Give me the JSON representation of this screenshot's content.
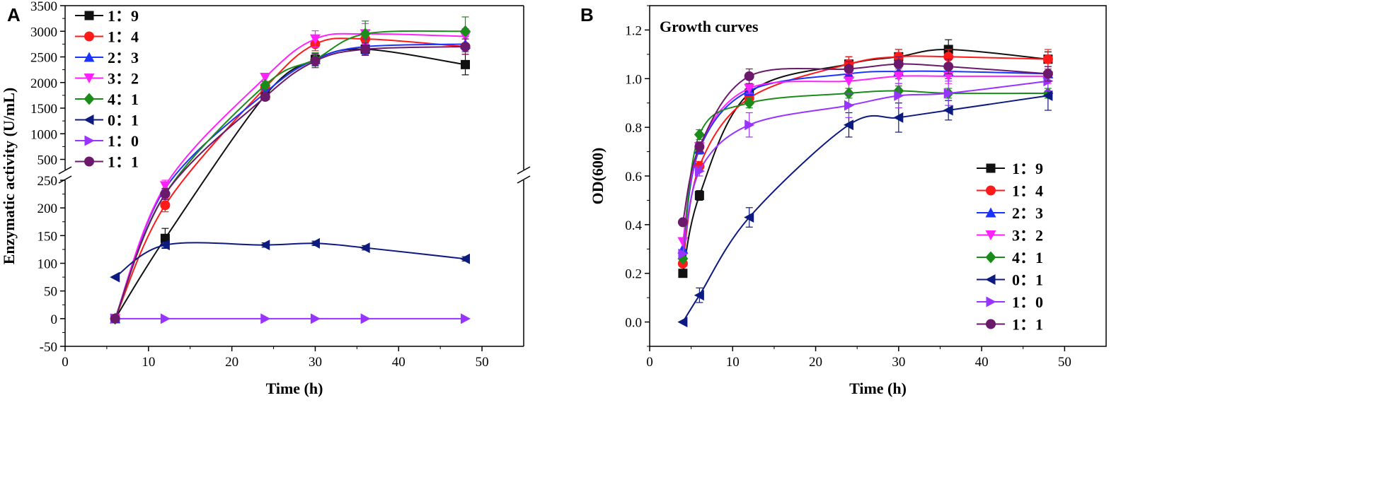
{
  "chart_data": [
    {
      "panel": "A",
      "type": "line",
      "title": "",
      "xlabel": "Time (h)",
      "ylabel": "Enzymatic activity (U/mL)",
      "xlim": [
        0,
        55
      ],
      "x_ticks": [
        "0",
        "10",
        "20",
        "30",
        "40",
        "50"
      ],
      "broken_y_axis": true,
      "ylim_lower": [
        -50,
        250
      ],
      "ylim_upper": [
        300,
        3500
      ],
      "y_ticks_lower": [
        "-50",
        "0",
        "50",
        "100",
        "150",
        "200",
        "250"
      ],
      "y_ticks_upper": [
        "500",
        "1000",
        "1500",
        "2000",
        "2500",
        "3000",
        "3500"
      ],
      "legend_position": "top-left",
      "x": [
        6,
        12,
        24,
        30,
        36,
        48
      ],
      "series": [
        {
          "name": "1：9",
          "color": "#111111",
          "marker": "square",
          "values": [
            0,
            145,
            1750,
            2450,
            2650,
            2350
          ],
          "errors": [
            0,
            18,
            70,
            120,
            120,
            200
          ]
        },
        {
          "name": "1：4",
          "color": "#ff1a1a",
          "marker": "circle",
          "values": [
            0,
            205,
            1900,
            2750,
            2850,
            2700
          ],
          "errors": [
            0,
            12,
            60,
            130,
            150,
            150
          ]
        },
        {
          "name": "2：3",
          "color": "#1a33ff",
          "marker": "triangle-up",
          "values": [
            0,
            235,
            1800,
            2450,
            2700,
            2750
          ],
          "errors": [
            0,
            10,
            60,
            120,
            150,
            150
          ]
        },
        {
          "name": "3：2",
          "color": "#ff22ff",
          "marker": "triangle-down",
          "values": [
            0,
            240,
            2100,
            2850,
            2950,
            2900
          ],
          "errors": [
            0,
            10,
            80,
            160,
            200,
            150
          ]
        },
        {
          "name": "4：1",
          "color": "#1a8c1a",
          "marker": "diamond",
          "values": [
            0,
            225,
            1950,
            2450,
            2950,
            3000
          ],
          "errors": [
            0,
            10,
            70,
            130,
            250,
            280
          ]
        },
        {
          "name": "0：1",
          "color": "#0d1a80",
          "marker": "triangle-left",
          "values": [
            75,
            133,
            133,
            136,
            128,
            108
          ],
          "errors": [
            0,
            5,
            4,
            4,
            4,
            4
          ]
        },
        {
          "name": "1：0",
          "color": "#9933ff",
          "marker": "triangle-right",
          "values": [
            0,
            0,
            0,
            0,
            0,
            0
          ],
          "errors": [
            0,
            0,
            0,
            0,
            0,
            0
          ]
        },
        {
          "name": "1：1",
          "color": "#6b1a6b",
          "marker": "circle",
          "values": [
            0,
            225,
            1720,
            2420,
            2650,
            2700
          ],
          "errors": [
            0,
            10,
            60,
            130,
            120,
            150
          ]
        }
      ]
    },
    {
      "panel": "B",
      "type": "line",
      "title": "Growth curves",
      "xlabel": "Time (h)",
      "ylabel": "OD(600)",
      "xlim": [
        0,
        55
      ],
      "ylim": [
        -0.1,
        1.3
      ],
      "x_ticks": [
        "0",
        "10",
        "20",
        "30",
        "40",
        "50"
      ],
      "y_ticks": [
        "0.0",
        "0.2",
        "0.4",
        "0.6",
        "0.8",
        "1.0",
        "1.2"
      ],
      "legend_position": "bottom-right",
      "x": [
        4,
        6,
        12,
        24,
        30,
        36,
        48
      ],
      "series": [
        {
          "name": "1：9",
          "color": "#111111",
          "marker": "square",
          "values": [
            0.2,
            0.52,
            0.94,
            1.06,
            1.09,
            1.12,
            1.08
          ],
          "errors": [
            0,
            0.02,
            0.02,
            0.03,
            0.03,
            0.04,
            0.03
          ]
        },
        {
          "name": "1：4",
          "color": "#ff1a1a",
          "marker": "circle",
          "values": [
            0.24,
            0.64,
            0.92,
            1.06,
            1.09,
            1.09,
            1.08
          ],
          "errors": [
            0,
            0.02,
            0.02,
            0.03,
            0.03,
            0.03,
            0.04
          ]
        },
        {
          "name": "2：3",
          "color": "#1a33ff",
          "marker": "triangle-up",
          "values": [
            0.3,
            0.71,
            0.95,
            1.02,
            1.03,
            1.03,
            1.02
          ],
          "errors": [
            0,
            0.02,
            0.02,
            0.03,
            0.03,
            0.03,
            0.03
          ]
        },
        {
          "name": "3：2",
          "color": "#ff22ff",
          "marker": "triangle-down",
          "values": [
            0.33,
            0.72,
            0.96,
            0.99,
            1.01,
            1.01,
            1.01
          ],
          "errors": [
            0,
            0.02,
            0.02,
            0.03,
            0.03,
            0.03,
            0.03
          ]
        },
        {
          "name": "4：1",
          "color": "#1a8c1a",
          "marker": "diamond",
          "values": [
            0.26,
            0.77,
            0.9,
            0.94,
            0.95,
            0.94,
            0.94
          ],
          "errors": [
            0,
            0.02,
            0.02,
            0.02,
            0.02,
            0.02,
            0.02
          ]
        },
        {
          "name": "0：1",
          "color": "#0d1a80",
          "marker": "triangle-left",
          "values": [
            0.0,
            0.11,
            0.43,
            0.81,
            0.84,
            0.87,
            0.93
          ],
          "errors": [
            0,
            0.03,
            0.04,
            0.05,
            0.06,
            0.04,
            0.06
          ]
        },
        {
          "name": "1：0",
          "color": "#9933ff",
          "marker": "triangle-right",
          "values": [
            0.28,
            0.62,
            0.81,
            0.89,
            0.93,
            0.94,
            0.99
          ],
          "errors": [
            0,
            0.02,
            0.05,
            0.05,
            0.05,
            0.05,
            0.04
          ]
        },
        {
          "name": "1：1",
          "color": "#6b1a6b",
          "marker": "circle",
          "values": [
            0.41,
            0.72,
            1.01,
            1.04,
            1.06,
            1.05,
            1.02
          ],
          "errors": [
            0,
            0.02,
            0.03,
            0.03,
            0.03,
            0.03,
            0.03
          ]
        }
      ]
    }
  ]
}
